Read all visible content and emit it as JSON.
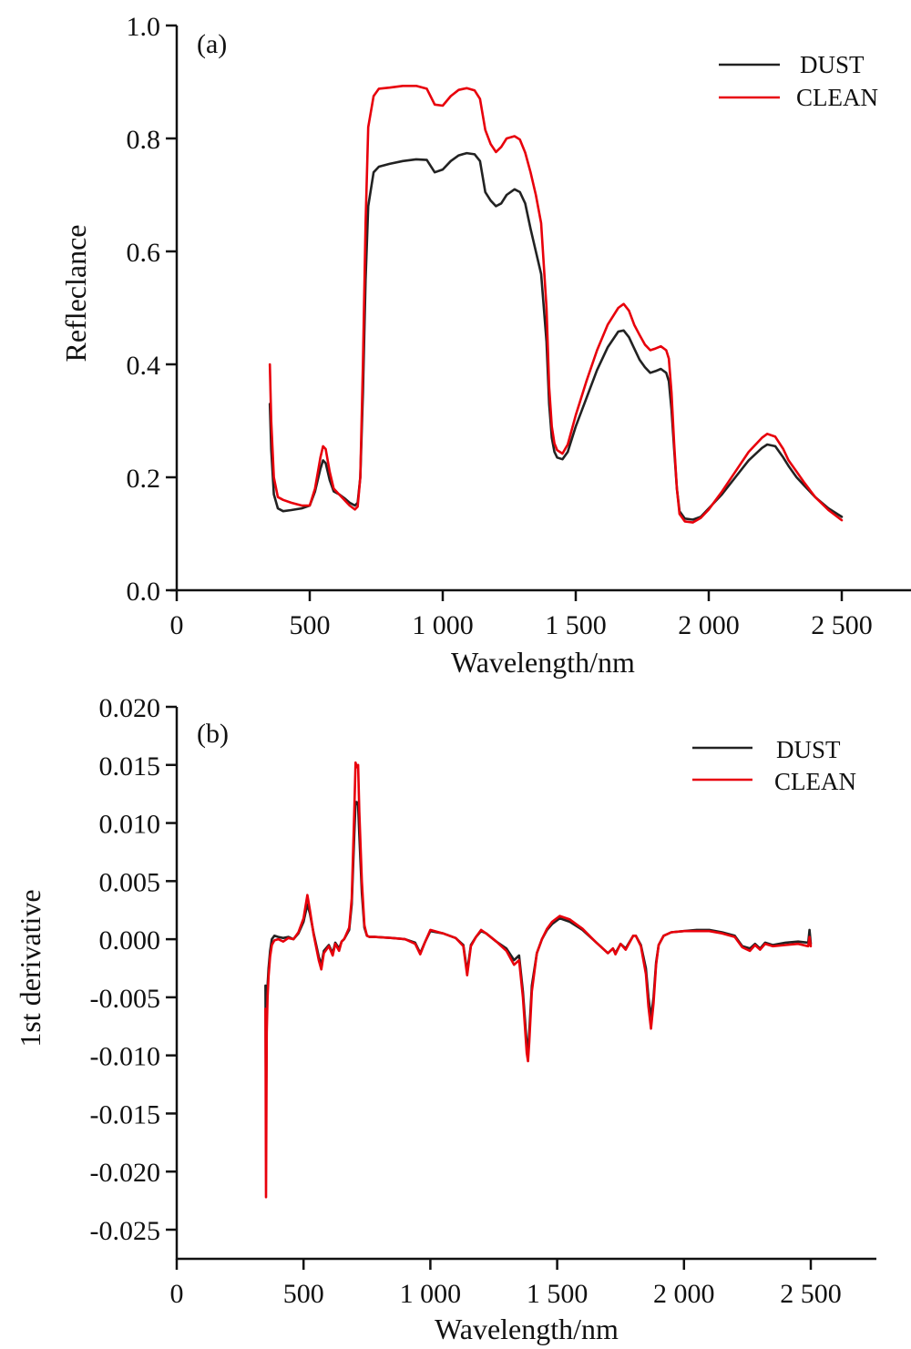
{
  "chart_data": [
    {
      "type": "line",
      "panel_label": "(a)",
      "title": "",
      "xlabel": "Wavelength/nm",
      "ylabel": "Refleclance",
      "xlim": [
        0,
        2750
      ],
      "ylim": [
        0.0,
        1.0
      ],
      "xticks": [
        0,
        500,
        1000,
        1500,
        2000,
        2500
      ],
      "xtick_labels": [
        "0",
        "500",
        "1 000",
        "1 500",
        "2 000",
        "2 500"
      ],
      "yticks": [
        0.0,
        0.2,
        0.4,
        0.6,
        0.8,
        1.0
      ],
      "ytick_labels": [
        "0.0",
        "0.2",
        "0.4",
        "0.6",
        "0.8",
        "1.0"
      ],
      "grid": false,
      "legend_position": "top-right",
      "series": [
        {
          "name": "DUST",
          "color": "#222222",
          "x": [
            350,
            355,
            365,
            380,
            400,
            430,
            470,
            500,
            520,
            540,
            550,
            560,
            575,
            590,
            610,
            630,
            650,
            670,
            680,
            690,
            700,
            710,
            720,
            740,
            760,
            800,
            850,
            900,
            940,
            970,
            1000,
            1030,
            1060,
            1090,
            1120,
            1140,
            1160,
            1180,
            1200,
            1220,
            1240,
            1270,
            1290,
            1310,
            1330,
            1350,
            1370,
            1390,
            1400,
            1410,
            1420,
            1430,
            1450,
            1470,
            1500,
            1540,
            1580,
            1620,
            1660,
            1680,
            1700,
            1720,
            1740,
            1760,
            1780,
            1800,
            1820,
            1840,
            1850,
            1860,
            1870,
            1880,
            1890,
            1910,
            1940,
            1970,
            2000,
            2050,
            2100,
            2150,
            2200,
            2220,
            2250,
            2280,
            2300,
            2330,
            2360,
            2400,
            2450,
            2500
          ],
          "y": [
            0.33,
            0.25,
            0.17,
            0.145,
            0.14,
            0.142,
            0.145,
            0.15,
            0.175,
            0.215,
            0.23,
            0.225,
            0.195,
            0.175,
            0.17,
            0.163,
            0.155,
            0.15,
            0.155,
            0.2,
            0.35,
            0.55,
            0.68,
            0.74,
            0.75,
            0.755,
            0.76,
            0.763,
            0.762,
            0.74,
            0.745,
            0.76,
            0.77,
            0.774,
            0.772,
            0.76,
            0.705,
            0.69,
            0.68,
            0.685,
            0.7,
            0.71,
            0.705,
            0.685,
            0.64,
            0.6,
            0.56,
            0.44,
            0.33,
            0.27,
            0.245,
            0.235,
            0.232,
            0.245,
            0.29,
            0.34,
            0.39,
            0.43,
            0.458,
            0.46,
            0.448,
            0.428,
            0.408,
            0.395,
            0.385,
            0.388,
            0.392,
            0.385,
            0.37,
            0.32,
            0.25,
            0.18,
            0.14,
            0.127,
            0.125,
            0.13,
            0.145,
            0.17,
            0.2,
            0.23,
            0.252,
            0.258,
            0.255,
            0.235,
            0.22,
            0.2,
            0.185,
            0.165,
            0.145,
            0.13
          ]
        },
        {
          "name": "CLEAN",
          "color": "#e8000b",
          "x": [
            350,
            355,
            365,
            380,
            400,
            430,
            470,
            500,
            520,
            540,
            550,
            560,
            575,
            590,
            610,
            630,
            650,
            670,
            680,
            690,
            700,
            710,
            720,
            740,
            760,
            800,
            850,
            900,
            940,
            970,
            1000,
            1030,
            1060,
            1090,
            1120,
            1140,
            1160,
            1180,
            1200,
            1220,
            1240,
            1270,
            1290,
            1310,
            1330,
            1350,
            1370,
            1390,
            1400,
            1410,
            1420,
            1430,
            1450,
            1470,
            1500,
            1540,
            1580,
            1620,
            1660,
            1680,
            1700,
            1720,
            1740,
            1760,
            1780,
            1800,
            1820,
            1840,
            1850,
            1860,
            1870,
            1880,
            1890,
            1910,
            1940,
            1970,
            2000,
            2050,
            2100,
            2150,
            2200,
            2220,
            2250,
            2280,
            2300,
            2330,
            2360,
            2400,
            2450,
            2500
          ],
          "y": [
            0.4,
            0.3,
            0.2,
            0.165,
            0.16,
            0.155,
            0.15,
            0.15,
            0.18,
            0.235,
            0.255,
            0.25,
            0.21,
            0.18,
            0.17,
            0.16,
            0.15,
            0.143,
            0.148,
            0.2,
            0.4,
            0.65,
            0.82,
            0.875,
            0.888,
            0.89,
            0.893,
            0.893,
            0.888,
            0.86,
            0.858,
            0.875,
            0.886,
            0.889,
            0.885,
            0.87,
            0.815,
            0.79,
            0.776,
            0.785,
            0.8,
            0.804,
            0.798,
            0.775,
            0.74,
            0.7,
            0.65,
            0.5,
            0.36,
            0.29,
            0.26,
            0.248,
            0.242,
            0.258,
            0.31,
            0.37,
            0.425,
            0.47,
            0.5,
            0.507,
            0.495,
            0.47,
            0.452,
            0.435,
            0.425,
            0.428,
            0.432,
            0.425,
            0.41,
            0.35,
            0.26,
            0.18,
            0.135,
            0.122,
            0.12,
            0.128,
            0.143,
            0.175,
            0.21,
            0.245,
            0.27,
            0.277,
            0.272,
            0.25,
            0.23,
            0.21,
            0.19,
            0.165,
            0.142,
            0.124
          ]
        }
      ]
    },
    {
      "type": "line",
      "panel_label": "(b)",
      "title": "",
      "xlabel": "Wavelength/nm",
      "ylabel": "1st derivative",
      "xlim": [
        0,
        2750
      ],
      "ylim": [
        -0.0275,
        0.02
      ],
      "xticks": [
        0,
        500,
        1000,
        1500,
        2000,
        2500
      ],
      "xtick_labels": [
        "0",
        "500",
        "1 000",
        "1 500",
        "2 000",
        "2 500"
      ],
      "yticks": [
        0.02,
        0.015,
        0.01,
        0.005,
        0.0,
        -0.005,
        -0.01,
        -0.015,
        -0.02,
        -0.025
      ],
      "ytick_labels": [
        "0.020",
        "0.015",
        "0.010",
        "0.005",
        "0.000",
        "-0.005",
        "-0.010",
        "-0.015",
        "-0.020",
        "-0.025"
      ],
      "grid": false,
      "legend_position": "top-right",
      "series": [
        {
          "name": "DUST",
          "color": "#222222",
          "x": [
            350,
            352,
            355,
            358,
            362,
            368,
            375,
            385,
            400,
            420,
            440,
            460,
            480,
            500,
            515,
            525,
            540,
            560,
            570,
            580,
            600,
            615,
            625,
            640,
            650,
            660,
            680,
            690,
            700,
            705,
            710,
            715,
            720,
            730,
            740,
            750,
            760,
            780,
            850,
            900,
            940,
            960,
            980,
            1000,
            1050,
            1100,
            1130,
            1145,
            1160,
            1180,
            1200,
            1220,
            1260,
            1300,
            1330,
            1350,
            1365,
            1380,
            1385,
            1390,
            1400,
            1420,
            1440,
            1460,
            1480,
            1510,
            1550,
            1600,
            1650,
            1700,
            1720,
            1730,
            1750,
            1770,
            1800,
            1810,
            1830,
            1850,
            1860,
            1870,
            1880,
            1890,
            1900,
            1920,
            1950,
            2000,
            2050,
            2100,
            2150,
            2200,
            2230,
            2260,
            2280,
            2300,
            2320,
            2350,
            2400,
            2450,
            2490,
            2495,
            2500
          ],
          "y": [
            -0.004,
            -0.015,
            -0.006,
            -0.004,
            -0.0025,
            -0.001,
            0.0,
            0.0003,
            0.0002,
            0.0001,
            0.0002,
            0.0,
            0.0005,
            0.0015,
            0.003,
            0.0022,
            0.0005,
            -0.0015,
            -0.0022,
            -0.001,
            -0.0005,
            -0.0012,
            -0.0003,
            -0.0008,
            -0.0002,
            0.0,
            0.0008,
            0.003,
            0.009,
            0.0118,
            0.0118,
            0.0115,
            0.009,
            0.004,
            0.001,
            0.0003,
            0.0002,
            0.0002,
            0.0001,
            0.0,
            -0.0003,
            -0.0012,
            -0.0002,
            0.0007,
            0.0005,
            0.0001,
            -0.0005,
            -0.0028,
            -0.0005,
            0.0002,
            0.0007,
            0.0005,
            -0.0002,
            -0.0008,
            -0.0018,
            -0.0014,
            -0.0045,
            -0.009,
            -0.0095,
            -0.008,
            -0.004,
            -0.0012,
            0.0,
            0.0008,
            0.0013,
            0.0018,
            0.0015,
            0.0008,
            -0.0002,
            -0.0012,
            -0.0008,
            -0.0012,
            -0.0004,
            -0.0008,
            0.0003,
            0.0003,
            -0.0005,
            -0.0025,
            -0.005,
            -0.0068,
            -0.005,
            -0.002,
            -0.0005,
            0.0003,
            0.0006,
            0.0007,
            0.0008,
            0.0008,
            0.0006,
            0.0003,
            -0.0006,
            -0.0008,
            -0.0004,
            -0.0008,
            -0.0003,
            -0.0005,
            -0.0003,
            -0.0002,
            -0.0003,
            0.0008,
            -0.0004
          ]
        },
        {
          "name": "CLEAN",
          "color": "#e8000b",
          "x": [
            350,
            352,
            355,
            358,
            362,
            368,
            375,
            385,
            400,
            420,
            440,
            460,
            480,
            500,
            515,
            525,
            540,
            560,
            570,
            580,
            600,
            615,
            625,
            640,
            650,
            660,
            680,
            690,
            700,
            705,
            710,
            715,
            720,
            730,
            740,
            750,
            760,
            780,
            850,
            900,
            940,
            960,
            980,
            1000,
            1050,
            1100,
            1130,
            1145,
            1160,
            1180,
            1200,
            1220,
            1260,
            1300,
            1330,
            1350,
            1365,
            1380,
            1385,
            1390,
            1400,
            1420,
            1440,
            1460,
            1480,
            1510,
            1550,
            1600,
            1650,
            1700,
            1720,
            1730,
            1750,
            1770,
            1800,
            1810,
            1830,
            1850,
            1860,
            1870,
            1880,
            1890,
            1900,
            1920,
            1950,
            2000,
            2050,
            2100,
            2150,
            2200,
            2230,
            2260,
            2280,
            2300,
            2320,
            2350,
            2400,
            2450,
            2490,
            2495,
            2500
          ],
          "y": [
            -0.006,
            -0.0222,
            -0.008,
            -0.005,
            -0.0032,
            -0.0015,
            -0.0005,
            -0.0001,
            0.0,
            -0.0002,
            0.0001,
            0.0,
            0.0006,
            0.0018,
            0.0038,
            0.0025,
            0.0004,
            -0.0018,
            -0.0026,
            -0.0012,
            -0.0006,
            -0.0014,
            -0.0004,
            -0.001,
            -0.0002,
            0.0,
            0.001,
            0.0035,
            0.011,
            0.0152,
            0.0148,
            0.015,
            0.011,
            0.005,
            0.0012,
            0.0003,
            0.0002,
            0.0002,
            0.0001,
            0.0,
            -0.0004,
            -0.0013,
            -0.0002,
            0.0008,
            0.0005,
            0.0001,
            -0.0006,
            -0.0031,
            -0.0006,
            0.0002,
            0.0008,
            0.0005,
            -0.0002,
            -0.001,
            -0.0022,
            -0.0018,
            -0.005,
            -0.0098,
            -0.0105,
            -0.0088,
            -0.0045,
            -0.0012,
            0.0,
            0.0009,
            0.0015,
            0.002,
            0.0017,
            0.0009,
            -0.0002,
            -0.0012,
            -0.0008,
            -0.0013,
            -0.0004,
            -0.0009,
            0.0003,
            0.0003,
            -0.0006,
            -0.003,
            -0.0058,
            -0.0077,
            -0.0055,
            -0.0022,
            -0.0005,
            0.0003,
            0.0006,
            0.0007,
            0.0007,
            0.0007,
            0.0005,
            0.0002,
            -0.0007,
            -0.001,
            -0.0005,
            -0.0009,
            -0.0004,
            -0.0006,
            -0.0005,
            -0.0004,
            -0.0006,
            0.0002,
            -0.0006
          ]
        }
      ]
    }
  ]
}
